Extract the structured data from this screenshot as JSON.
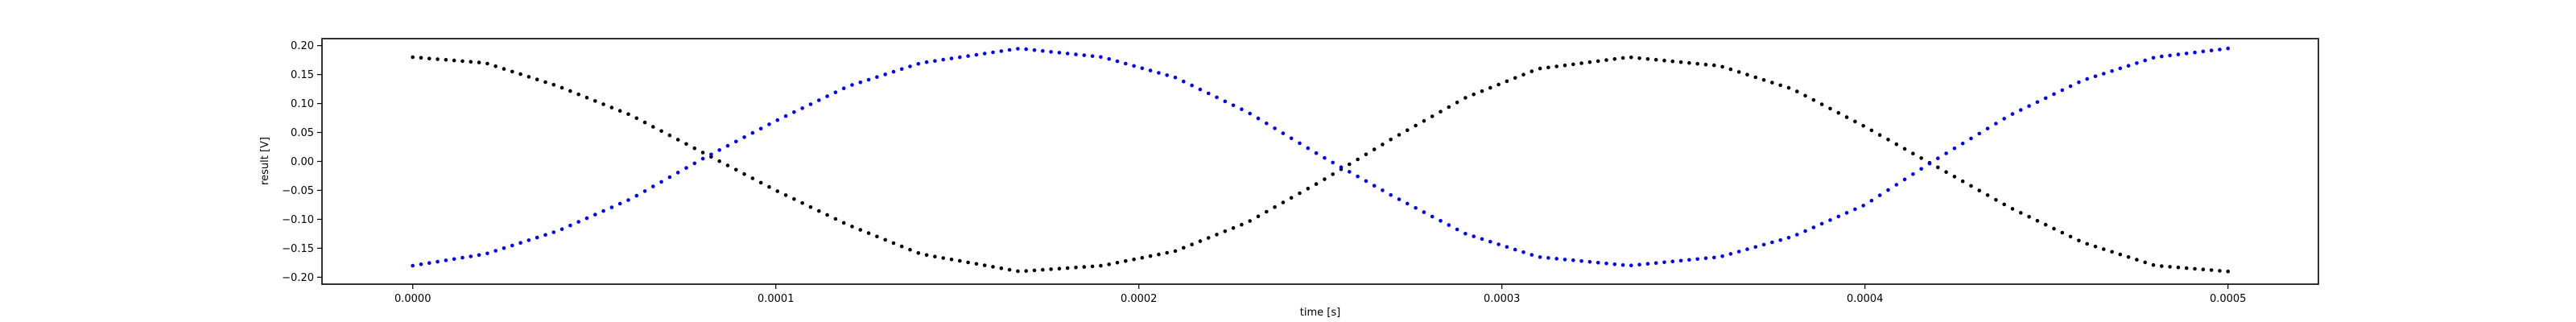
{
  "chart_data": {
    "type": "scatter",
    "xlabel": "time [s]",
    "ylabel": "result [V]",
    "xlim": [
      -2.5e-05,
      0.0005249
    ],
    "ylim": [
      -0.212,
      0.212
    ],
    "x_ticks": [
      {
        "value": 0.0,
        "label": "0.0000"
      },
      {
        "value": 0.0001,
        "label": "0.0001"
      },
      {
        "value": 0.0002,
        "label": "0.0002"
      },
      {
        "value": 0.0003,
        "label": "0.0003"
      },
      {
        "value": 0.0004,
        "label": "0.0004"
      },
      {
        "value": 0.0005,
        "label": "0.0005"
      }
    ],
    "y_ticks": [
      {
        "value": 0.2,
        "label": "0.20"
      },
      {
        "value": 0.15,
        "label": "0.15"
      },
      {
        "value": 0.1,
        "label": "0.10"
      },
      {
        "value": 0.05,
        "label": "0.05"
      },
      {
        "value": 0.0,
        "label": "0.00"
      },
      {
        "value": -0.05,
        "label": "−0.05"
      },
      {
        "value": -0.1,
        "label": "−0.10"
      },
      {
        "value": -0.15,
        "label": "−0.15"
      },
      {
        "value": -0.2,
        "label": "−0.20"
      }
    ],
    "grid": false,
    "legend": "none",
    "series": [
      {
        "color": "#000000",
        "x": [
          0.0,
          2e-05,
          4e-05,
          6e-05,
          8e-05,
          0.0001,
          0.00012,
          0.00014,
          0.000167,
          0.00019,
          0.00021,
          0.00023,
          0.00025,
          0.00027,
          0.00029,
          0.00031,
          0.000335,
          0.00036,
          0.00038,
          0.0004,
          0.00042,
          0.00044,
          0.00046,
          0.00048,
          0.0005
        ],
        "values": [
          0.18,
          0.17,
          0.13,
          0.08,
          0.015,
          -0.05,
          -0.11,
          -0.16,
          -0.19,
          -0.18,
          -0.155,
          -0.105,
          -0.035,
          0.04,
          0.11,
          0.16,
          0.18,
          0.165,
          0.125,
          0.06,
          -0.01,
          -0.08,
          -0.14,
          -0.18,
          -0.19
        ]
      },
      {
        "color": "#0000ff",
        "x": [
          0.0,
          2e-05,
          4e-05,
          6e-05,
          8e-05,
          0.0001,
          0.00012,
          0.00014,
          0.000167,
          0.00019,
          0.00021,
          0.00023,
          0.00025,
          0.00027,
          0.00029,
          0.00031,
          0.000335,
          0.00036,
          0.00038,
          0.0004,
          0.00042,
          0.00044,
          0.00046,
          0.00048,
          0.0005
        ],
        "values": [
          -0.18,
          -0.16,
          -0.12,
          -0.065,
          0.005,
          0.07,
          0.13,
          0.17,
          0.195,
          0.18,
          0.145,
          0.085,
          0.01,
          -0.06,
          -0.125,
          -0.165,
          -0.18,
          -0.165,
          -0.13,
          -0.075,
          0.005,
          0.08,
          0.14,
          0.18,
          0.195
        ]
      }
    ]
  }
}
